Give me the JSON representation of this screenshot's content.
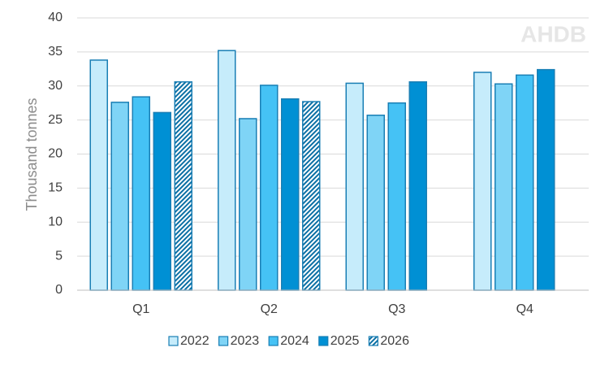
{
  "chart_data": {
    "type": "bar",
    "y_label": "Thousand tonnes",
    "logo": "AHDB",
    "categories": [
      "Q1",
      "Q2",
      "Q3",
      "Q4"
    ],
    "series": [
      {
        "name": "2022",
        "color": "#c6ecfb",
        "values": [
          33.8,
          35.2,
          30.4,
          32.0
        ]
      },
      {
        "name": "2023",
        "color": "#7fd4f6",
        "values": [
          27.6,
          25.2,
          25.7,
          30.3
        ]
      },
      {
        "name": "2024",
        "color": "#45c2f5",
        "values": [
          28.4,
          30.1,
          27.5,
          31.6
        ]
      },
      {
        "name": "2025",
        "color": "#0090d4",
        "values": [
          26.1,
          28.1,
          30.6,
          32.4
        ]
      },
      {
        "name": "2026",
        "color": "#0b6fa4",
        "hatch": true,
        "values": [
          30.6,
          27.7,
          null,
          null
        ]
      }
    ],
    "ylim": [
      0,
      40
    ],
    "yticks": [
      0,
      5,
      10,
      15,
      20,
      25,
      30,
      35,
      40
    ],
    "grid": true
  }
}
